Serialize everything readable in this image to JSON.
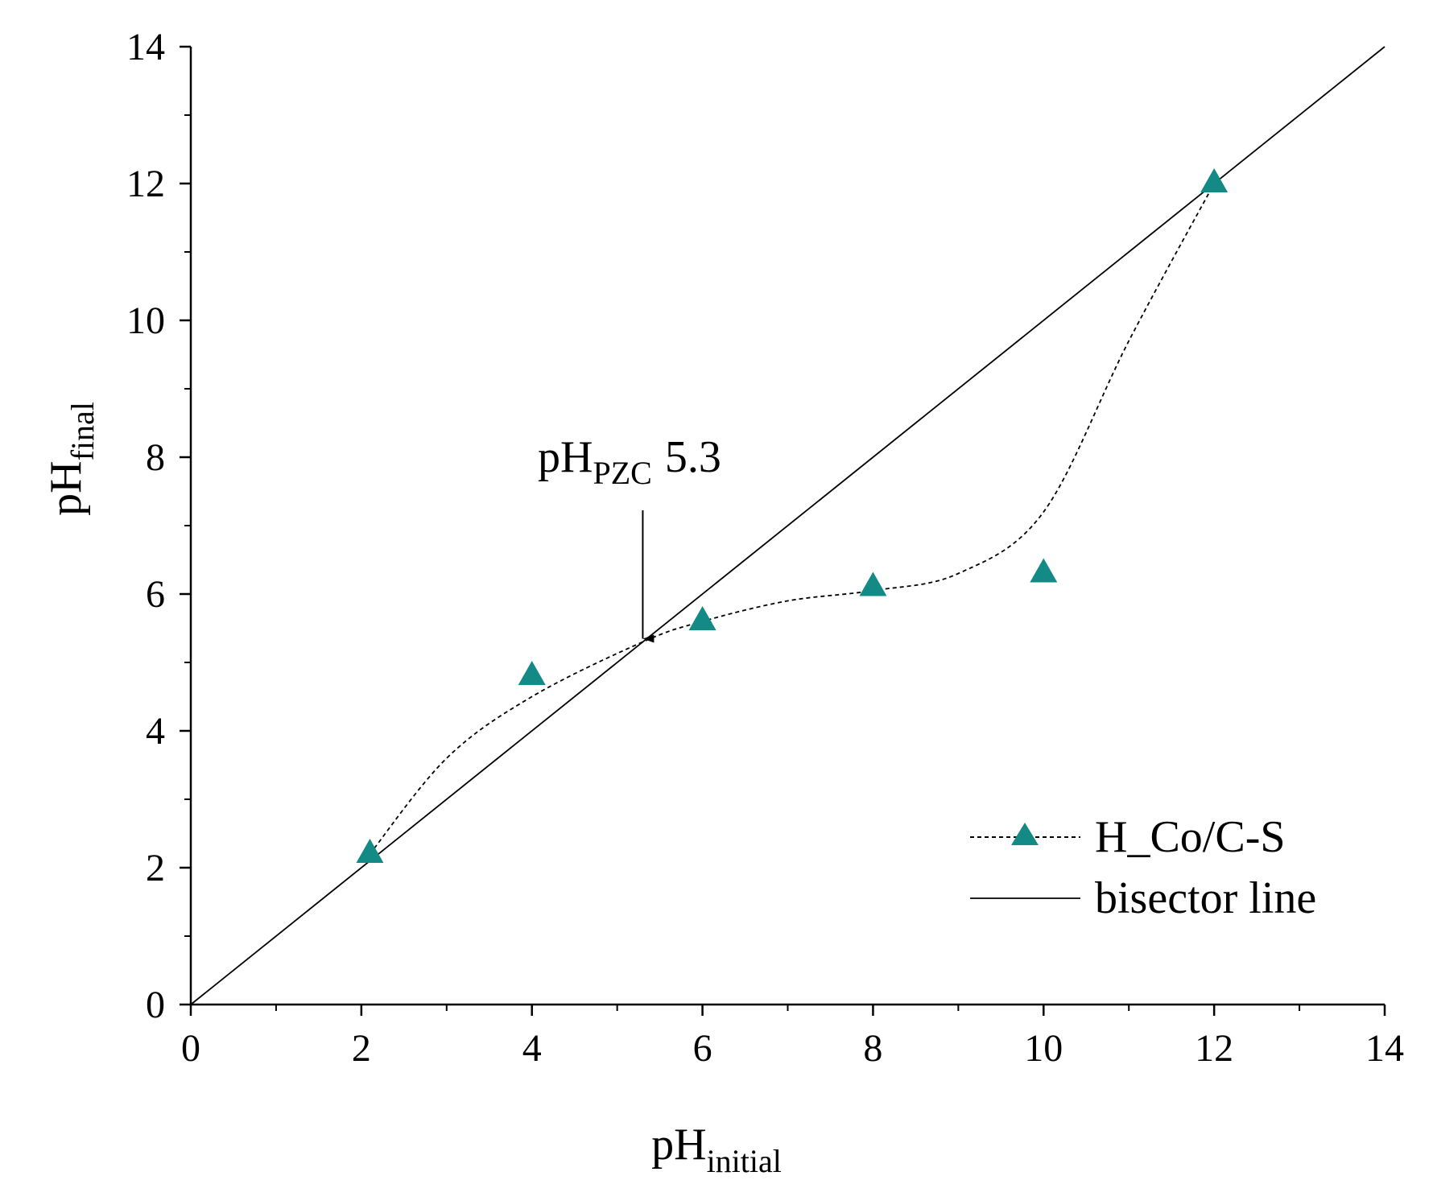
{
  "chart_data": {
    "type": "scatter",
    "title": "",
    "xlabel": {
      "main": "pH",
      "sub": "initial"
    },
    "ylabel": {
      "main": "pH",
      "sub": "final"
    },
    "xlim": [
      0,
      14
    ],
    "ylim": [
      0,
      14
    ],
    "x_ticks": [
      0,
      2,
      4,
      6,
      8,
      10,
      12,
      14
    ],
    "y_ticks": [
      0,
      2,
      4,
      6,
      8,
      10,
      12,
      14
    ],
    "grid": false,
    "legend_position": "bottom-right",
    "series": [
      {
        "name": "H_Co/C-S",
        "marker": "triangle",
        "line_style": "dashed",
        "color": "#138A85",
        "points": [
          {
            "x": 2.1,
            "y": 2.2
          },
          {
            "x": 4,
            "y": 4.8
          },
          {
            "x": 6,
            "y": 5.6
          },
          {
            "x": 8,
            "y": 6.1
          },
          {
            "x": 10,
            "y": 6.3
          },
          {
            "x": 12,
            "y": 12
          }
        ],
        "smoothed_curve": [
          {
            "x": 2.1,
            "y": 2.2
          },
          {
            "x": 3,
            "y": 3.6
          },
          {
            "x": 4,
            "y": 4.5
          },
          {
            "x": 5.3,
            "y": 5.3
          },
          {
            "x": 6,
            "y": 5.6
          },
          {
            "x": 7,
            "y": 5.9
          },
          {
            "x": 8,
            "y": 6.05
          },
          {
            "x": 9,
            "y": 6.3
          },
          {
            "x": 10,
            "y": 7.2
          },
          {
            "x": 11,
            "y": 9.7
          },
          {
            "x": 12,
            "y": 12
          }
        ]
      },
      {
        "name": "bisector line",
        "line_style": "solid",
        "color": "#000000",
        "points": [
          {
            "x": 0,
            "y": 0
          },
          {
            "x": 14,
            "y": 14
          }
        ]
      }
    ],
    "annotations": [
      {
        "text_main": "pH",
        "text_sub": "PZC",
        "text_value": "5.3",
        "arrow_to": {
          "x": 5.3,
          "y": 5.3
        }
      }
    ]
  }
}
